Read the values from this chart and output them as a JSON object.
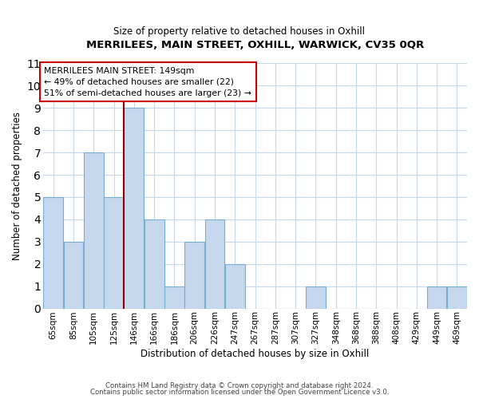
{
  "title": "MERRILEES, MAIN STREET, OXHILL, WARWICK, CV35 0QR",
  "subtitle": "Size of property relative to detached houses in Oxhill",
  "xlabel": "Distribution of detached houses by size in Oxhill",
  "ylabel": "Number of detached properties",
  "categories": [
    "65sqm",
    "85sqm",
    "105sqm",
    "125sqm",
    "146sqm",
    "166sqm",
    "186sqm",
    "206sqm",
    "226sqm",
    "247sqm",
    "267sqm",
    "287sqm",
    "307sqm",
    "327sqm",
    "348sqm",
    "368sqm",
    "388sqm",
    "408sqm",
    "429sqm",
    "449sqm",
    "469sqm"
  ],
  "values": [
    5,
    3,
    7,
    5,
    9,
    4,
    1,
    3,
    4,
    2,
    0,
    0,
    0,
    1,
    0,
    0,
    0,
    0,
    0,
    1,
    1
  ],
  "highlight_index": 4,
  "highlight_color": "#8b0000",
  "bar_color": "#c5d8ed",
  "bar_edge_color": "#7aadd4",
  "ylim": [
    0,
    11
  ],
  "yticks": [
    0,
    1,
    2,
    3,
    4,
    5,
    6,
    7,
    8,
    9,
    10,
    11
  ],
  "annotation_title": "MERRILEES MAIN STREET: 149sqm",
  "annotation_line1": "← 49% of detached houses are smaller (22)",
  "annotation_line2": "51% of semi-detached houses are larger (23) →",
  "footer_line1": "Contains HM Land Registry data © Crown copyright and database right 2024.",
  "footer_line2": "Contains public sector information licensed under the Open Government Licence v3.0.",
  "background_color": "#ffffff",
  "grid_color": "#c8d8eb"
}
